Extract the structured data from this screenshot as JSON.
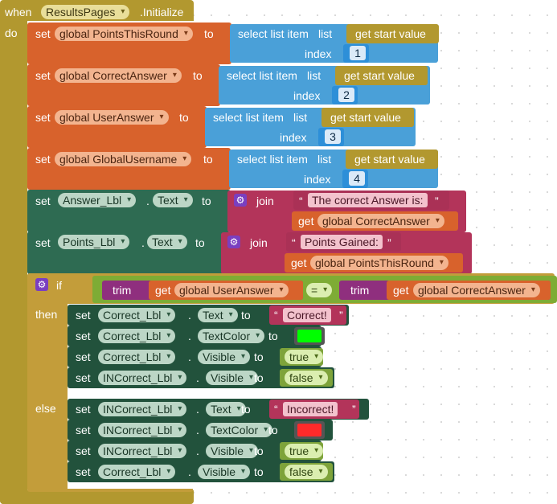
{
  "event": {
    "when": "when",
    "component": "ResultsPages",
    "event": ".Initialize",
    "do": "do"
  },
  "k": {
    "set": "set",
    "to": "to",
    "select": "select list item",
    "list": "list",
    "index": "index",
    "get_start": "get start value",
    "join": "join",
    "get": "get",
    "if": "if",
    "then": "then",
    "else": "else",
    "trim": "trim",
    "eq": "=",
    "dot": "."
  },
  "globals": [
    {
      "var": "global PointsThisRound",
      "index": "1"
    },
    {
      "var": "global CorrectAnswer",
      "index": "2"
    },
    {
      "var": "global UserAnswer",
      "index": "3"
    },
    {
      "var": "global GlobalUsername",
      "index": "4"
    }
  ],
  "joins": [
    {
      "component": "Answer_Lbl",
      "prop": "Text",
      "text": "The correct Answer is: ",
      "var": "global CorrectAnswer"
    },
    {
      "component": "Points_Lbl",
      "prop": "Text",
      "text": "Points Gained: ",
      "var": "global PointsThisRound"
    }
  ],
  "condition": {
    "left": "global UserAnswer",
    "op": "=",
    "right": "global CorrectAnswer"
  },
  "then_rows": [
    {
      "component": "Correct_Lbl",
      "prop": "Text",
      "value": "Correct!",
      "kind": "text"
    },
    {
      "component": "Correct_Lbl",
      "prop": "TextColor",
      "color": "#00ff00",
      "kind": "color"
    },
    {
      "component": "Correct_Lbl",
      "prop": "Visible",
      "value": "true",
      "kind": "bool"
    },
    {
      "component": "INCorrect_Lbl",
      "prop": "Visible",
      "value": "false",
      "kind": "bool"
    }
  ],
  "else_rows": [
    {
      "component": "INCorrect_Lbl",
      "prop": "Text",
      "value": "Incorrect!",
      "kind": "text"
    },
    {
      "component": "INCorrect_Lbl",
      "prop": "TextColor",
      "color": "#ff2a2a",
      "kind": "color"
    },
    {
      "component": "INCorrect_Lbl",
      "prop": "Visible",
      "value": "true",
      "kind": "bool"
    },
    {
      "component": "Correct_Lbl",
      "prop": "Visible",
      "value": "false",
      "kind": "bool"
    }
  ],
  "colors": {
    "event": "#b2982f",
    "variable": "#d8622c",
    "list": "#4aa0d8",
    "component": "#2e6b52",
    "text": "#b3345a",
    "logic": "#7eac35"
  }
}
